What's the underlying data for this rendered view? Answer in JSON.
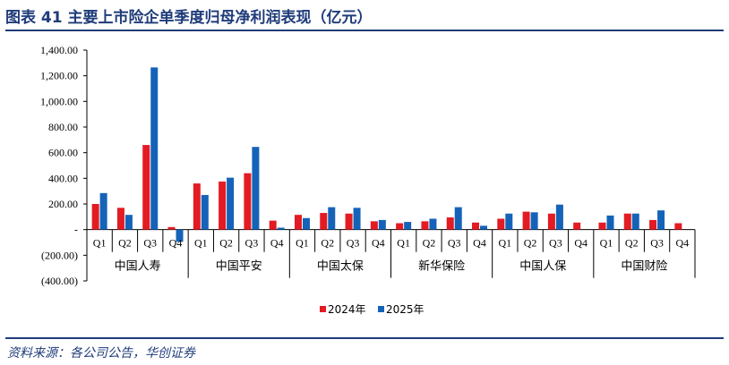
{
  "figure": {
    "title": "图表 41    主要上市险企单季度归母净利润表现（亿元）",
    "source": "资料来源：各公司公告，华创证券"
  },
  "colors": {
    "title": "#1f3c7a",
    "series_2024": "#e31b23",
    "series_2025": "#1563b8"
  },
  "chart_data": {
    "type": "bar",
    "ylim": [
      -400,
      1400
    ],
    "yticks": [
      -400,
      -200,
      0,
      200,
      400,
      600,
      800,
      1000,
      1200,
      1400
    ],
    "ytick_labels": [
      "(400.00)",
      "(200.00)",
      "-",
      "200.00",
      "400.00",
      "600.00",
      "800.00",
      "1,000.00",
      "1,200.00",
      "1,400.00"
    ],
    "quarters": [
      "Q1",
      "Q2",
      "Q3",
      "Q4"
    ],
    "groups": [
      "中国人寿",
      "中国平安",
      "中国太保",
      "新华保险",
      "中国人保",
      "中国财险"
    ],
    "legend_position": "bottom-center",
    "grid": false,
    "series": [
      {
        "name": "2024年",
        "color": "#e31b23",
        "values": [
          [
            200,
            170,
            660,
            20
          ],
          [
            360,
            375,
            440,
            70
          ],
          [
            115,
            130,
            125,
            65
          ],
          [
            50,
            65,
            95,
            55
          ],
          [
            85,
            140,
            125,
            55
          ],
          [
            55,
            125,
            75,
            50
          ]
        ]
      },
      {
        "name": "2025年",
        "color": "#1563b8",
        "values": [
          [
            285,
            115,
            1265,
            -95
          ],
          [
            270,
            405,
            645,
            15
          ],
          [
            90,
            175,
            170,
            75
          ],
          [
            60,
            85,
            175,
            30
          ],
          [
            125,
            135,
            195,
            0
          ],
          [
            110,
            125,
            150,
            0
          ]
        ]
      }
    ]
  }
}
